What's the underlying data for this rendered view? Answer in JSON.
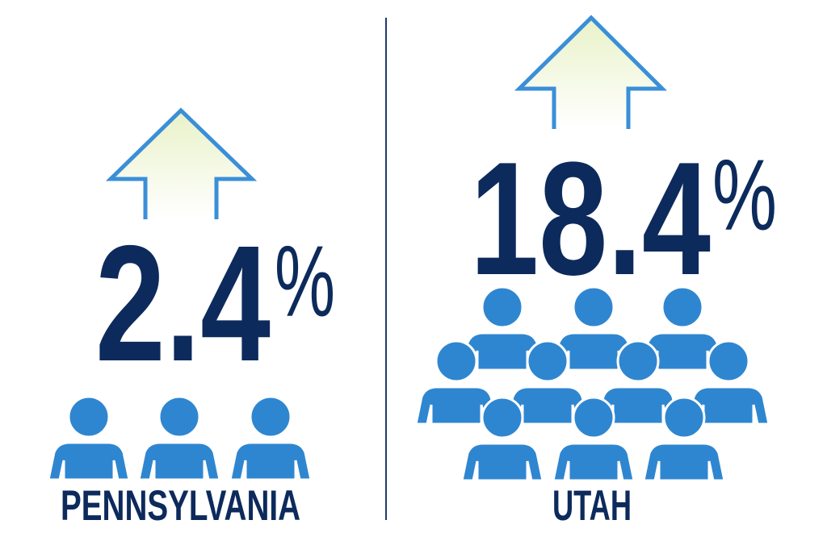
{
  "panels": [
    {
      "number": "2.4",
      "unit": "%",
      "label": "PENNSYLVANIA"
    },
    {
      "number": "18.4",
      "unit": "%",
      "label": "UTAH"
    }
  ]
}
